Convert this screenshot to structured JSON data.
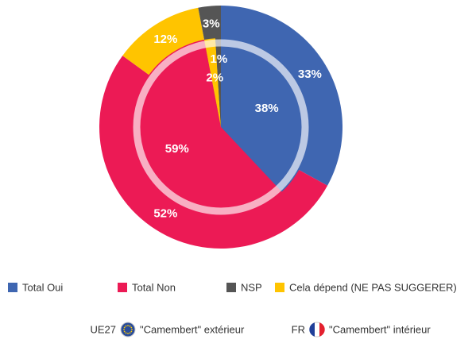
{
  "chart_data": {
    "type": "pie",
    "categories": [
      "Total Oui",
      "Total Non",
      "NSP",
      "Cela dépend (NE PAS SUGGERER)"
    ],
    "colors": [
      "#3f66b1",
      "#ec1a55",
      "#555555",
      "#ffc400"
    ],
    "slice_order": [
      0,
      1,
      3,
      2
    ],
    "series": [
      {
        "name": "UE27",
        "ring": "\"Camembert\" extérieur",
        "values": [
          33,
          52,
          3,
          12
        ],
        "value_labels": [
          "33%",
          "52%",
          "3%",
          "12%"
        ]
      },
      {
        "name": "FR",
        "ring": "\"Camembert\" intérieur",
        "values": [
          38,
          59,
          1,
          2
        ],
        "value_labels": [
          "38%",
          "59%",
          "1%",
          "2%"
        ]
      }
    ]
  }
}
